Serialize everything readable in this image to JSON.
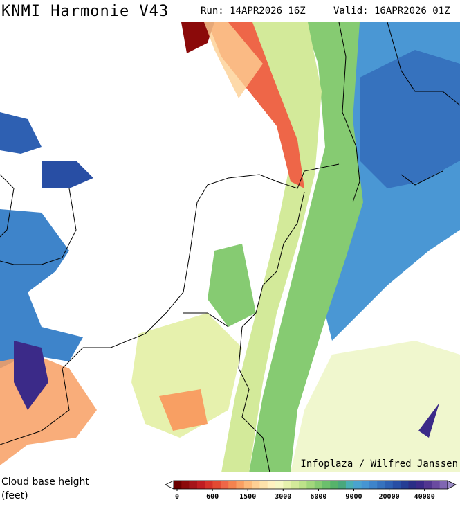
{
  "header": {
    "title": "KNMI Harmonie V43",
    "run": "Run: 14APR2026 16Z",
    "valid": "Valid: 16APR2026 01Z"
  },
  "credit": "Infoplaza / Wilfred Janssen",
  "legend": {
    "label_line1": "Cloud base height",
    "label_line2": "(feet)",
    "colors": [
      "#6b0000",
      "#8b0a0a",
      "#a5141a",
      "#bf1d22",
      "#d5322a",
      "#e34a33",
      "#ee6648",
      "#f4834f",
      "#f89f63",
      "#fbb97a",
      "#fdcf94",
      "#fee2aa",
      "#fff1c0",
      "#f6f7c4",
      "#e6f1ad",
      "#d3ea9a",
      "#bde28a",
      "#a2d77c",
      "#86cb72",
      "#6bbf6c",
      "#56b36b",
      "#49a87c",
      "#4aafb2",
      "#4aa3cf",
      "#4595d3",
      "#3e84ca",
      "#3672be",
      "#2e60b2",
      "#284ea4",
      "#253d94",
      "#2a2e86",
      "#3b2a88",
      "#523690",
      "#6a4aa0",
      "#8066b2"
    ],
    "ticks": [
      0,
      600,
      1500,
      3000,
      6000,
      9000,
      20000,
      40000
    ]
  }
}
